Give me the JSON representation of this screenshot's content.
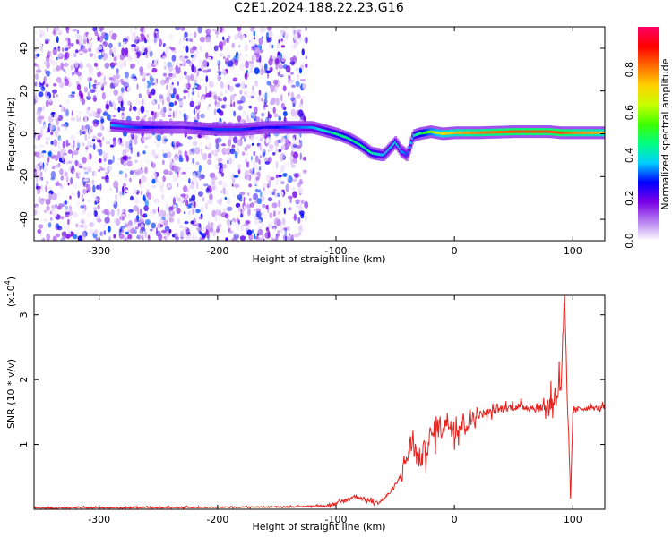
{
  "title": "C2E1.2024.188.22.23.G16",
  "colors": {
    "snr_line": "#e8231e",
    "frame": "#000000"
  },
  "chart_data": [
    {
      "type": "heatmap",
      "xlabel": "Height of straight line (km)",
      "ylabel": "Frequency (Hz)",
      "xlim": [
        -355,
        127
      ],
      "ylim": [
        -50,
        50
      ],
      "x_ticks": [
        -300,
        -200,
        -100,
        0,
        100
      ],
      "y_ticks": [
        -40,
        -20,
        0,
        20,
        40
      ],
      "colorbar": {
        "label": "Normalized spectral amplitude",
        "range": [
          0,
          1
        ],
        "ticks": [
          "0.0",
          "0.2",
          "0.4",
          "0.6",
          "0.8"
        ],
        "tick_values": [
          0,
          0.2,
          0.4,
          0.6,
          0.8
        ],
        "colors": [
          "#ffffff",
          "#b57ef0",
          "#7a00e6",
          "#0000ff",
          "#00d0ff",
          "#00ff80",
          "#40ff00",
          "#c8ff00",
          "#ffd000",
          "#ff6a00",
          "#ff0000",
          "#ff0066"
        ]
      },
      "ridge": {
        "x": [
          -290,
          -270,
          -250,
          -230,
          -200,
          -180,
          -160,
          -140,
          -120,
          -100,
          -90,
          -80,
          -70,
          -60,
          -50,
          -45,
          -40,
          -35,
          -30,
          -20,
          -10,
          0,
          20,
          50,
          80,
          90,
          100,
          127
        ],
        "freq": [
          4,
          3,
          3,
          3,
          2,
          2,
          3,
          3,
          3,
          0,
          -2,
          -5,
          -9,
          -10,
          -4,
          -8,
          -10,
          -1,
          0,
          1,
          0,
          0.5,
          0.5,
          1,
          1,
          0.5,
          0.5,
          0.5
        ],
        "amplitude": [
          0.35,
          0.3,
          0.25,
          0.2,
          0.3,
          0.3,
          0.25,
          0.3,
          0.35,
          0.45,
          0.45,
          0.45,
          0.45,
          0.35,
          0.4,
          0.35,
          0.3,
          0.4,
          0.45,
          0.6,
          0.7,
          0.75,
          0.8,
          0.85,
          0.85,
          0.85,
          0.8,
          0.75
        ]
      },
      "noise_region": [
        -355,
        -125
      ]
    },
    {
      "type": "line",
      "xlabel": "Height of straight line (km)",
      "ylabel": "SNR (10 * v/v)",
      "ylabel_scale": "(x10",
      "ylabel_scale_exp": "4",
      "ylabel_scale_close": ")",
      "xlim": [
        -355,
        127
      ],
      "ylim": [
        0,
        3.3
      ],
      "x_ticks": [
        -300,
        -200,
        -100,
        0,
        100
      ],
      "y_ticks": [
        1,
        2,
        3
      ],
      "series": [
        {
          "x": [
            -355,
            -200,
            -130,
            -110,
            -100,
            -95,
            -90,
            -85,
            -80,
            -75,
            -70,
            -65,
            -60,
            -55,
            -50,
            -45,
            -40,
            -36,
            -33,
            -30,
            -25,
            -20,
            -15,
            -10,
            -5,
            0,
            10,
            20,
            30,
            40,
            50,
            60,
            70,
            80,
            85,
            90,
            93,
            96,
            98,
            100,
            105,
            110,
            120,
            127
          ],
          "y": [
            0.02,
            0.03,
            0.04,
            0.06,
            0.08,
            0.12,
            0.15,
            0.2,
            0.18,
            0.15,
            0.12,
            0.1,
            0.15,
            0.25,
            0.35,
            0.55,
            0.8,
            1.05,
            0.9,
            0.75,
            0.9,
            1.1,
            1.25,
            1.3,
            1.35,
            1.25,
            1.35,
            1.45,
            1.5,
            1.55,
            1.58,
            1.58,
            1.55,
            1.6,
            1.75,
            1.95,
            3.2,
            1.2,
            0.1,
            1.5,
            1.55,
            1.56,
            1.56,
            1.58
          ]
        }
      ]
    }
  ]
}
